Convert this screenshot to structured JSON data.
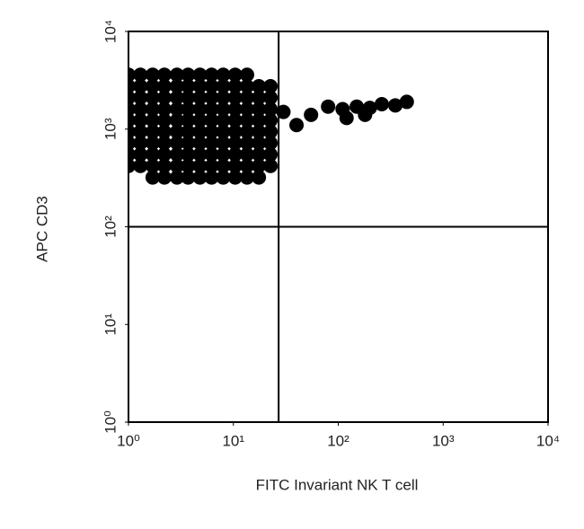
{
  "chart_data": {
    "type": "scatter",
    "xlabel": "FITC Invariant NK T cell",
    "ylabel": "APC CD3",
    "xscale": "log",
    "yscale": "log",
    "xlim": [
      1,
      10000
    ],
    "ylim": [
      1,
      10000
    ],
    "xticks": [
      {
        "value": 1,
        "label": "10⁰"
      },
      {
        "value": 10,
        "label": "10¹"
      },
      {
        "value": 100,
        "label": "10²"
      },
      {
        "value": 1000,
        "label": "10³"
      },
      {
        "value": 10000,
        "label": "10⁴"
      }
    ],
    "yticks": [
      {
        "value": 1,
        "label": "10⁰"
      },
      {
        "value": 10,
        "label": "10¹"
      },
      {
        "value": 100,
        "label": "10²"
      },
      {
        "value": 1000,
        "label": "10³"
      },
      {
        "value": 10000,
        "label": "10⁴"
      }
    ],
    "quadrant_x": 27,
    "quadrant_y": 100,
    "grid": false,
    "series": [
      {
        "color": "#000000",
        "x": [
          1.7,
          2.2,
          2.9,
          3.7,
          4.8,
          6.2,
          8,
          10.4,
          13.5,
          17.5,
          1,
          1.3,
          1.7,
          2.2,
          2.9,
          3.7,
          4.8,
          6.2,
          8,
          10.4,
          13.5,
          17.5,
          22.6,
          1,
          1.3,
          1.7,
          2.2,
          2.9,
          3.7,
          4.8,
          6.2,
          8,
          10.4,
          13.5,
          17.5,
          22.6,
          1,
          1.3,
          1.7,
          2.2,
          2.9,
          3.7,
          4.8,
          6.2,
          8,
          10.4,
          13.5,
          17.5,
          22.6,
          1,
          1.3,
          1.7,
          2.2,
          2.9,
          3.7,
          4.8,
          6.2,
          8,
          10.4,
          13.5,
          17.5,
          22.6,
          1,
          1.3,
          1.7,
          2.2,
          2.9,
          3.7,
          4.8,
          6.2,
          8,
          10.4,
          13.5,
          17.5,
          22.6,
          1,
          1.3,
          1.7,
          2.2,
          2.9,
          3.7,
          4.8,
          6.2,
          8,
          10.4,
          13.5,
          17.5,
          22.6,
          1,
          1.3,
          1.7,
          2.2,
          2.9,
          3.7,
          4.8,
          6.2,
          8,
          10.4,
          13.5,
          17.5,
          22.6,
          1,
          1.3,
          1.7,
          2.2,
          2.9,
          3.7,
          4.8,
          6.2,
          8,
          10.4,
          13.5,
          17.5,
          22.6,
          1,
          1.3,
          1.7,
          2.2,
          2.9,
          3.7,
          4.8,
          6.2,
          8,
          10.4,
          13.5,
          30,
          40,
          55,
          80,
          110,
          150,
          200,
          260,
          350,
          180,
          450,
          120
        ],
        "y": [
          320,
          320,
          320,
          320,
          320,
          320,
          320,
          320,
          320,
          320,
          420,
          420,
          420,
          420,
          420,
          420,
          420,
          420,
          420,
          420,
          420,
          420,
          420,
          550,
          550,
          550,
          550,
          550,
          550,
          550,
          550,
          550,
          550,
          550,
          550,
          550,
          720,
          720,
          720,
          720,
          720,
          720,
          720,
          720,
          720,
          720,
          720,
          720,
          720,
          940,
          940,
          940,
          940,
          940,
          940,
          940,
          940,
          940,
          940,
          940,
          940,
          940,
          1230,
          1230,
          1230,
          1230,
          1230,
          1230,
          1230,
          1230,
          1230,
          1230,
          1230,
          1230,
          1230,
          1600,
          1600,
          1600,
          1600,
          1600,
          1600,
          1600,
          1600,
          1600,
          1600,
          1600,
          1600,
          1600,
          2100,
          2100,
          2100,
          2100,
          2100,
          2100,
          2100,
          2100,
          2100,
          2100,
          2100,
          2100,
          2100,
          2750,
          2750,
          2750,
          2750,
          2750,
          2750,
          2750,
          2750,
          2750,
          2750,
          2750,
          2750,
          2750,
          3600,
          3600,
          3600,
          3600,
          3600,
          3600,
          3600,
          3600,
          3600,
          3600,
          3600,
          1500,
          1100,
          1400,
          1700,
          1600,
          1700,
          1650,
          1800,
          1750,
          1400,
          1900,
          1300
        ]
      }
    ]
  }
}
